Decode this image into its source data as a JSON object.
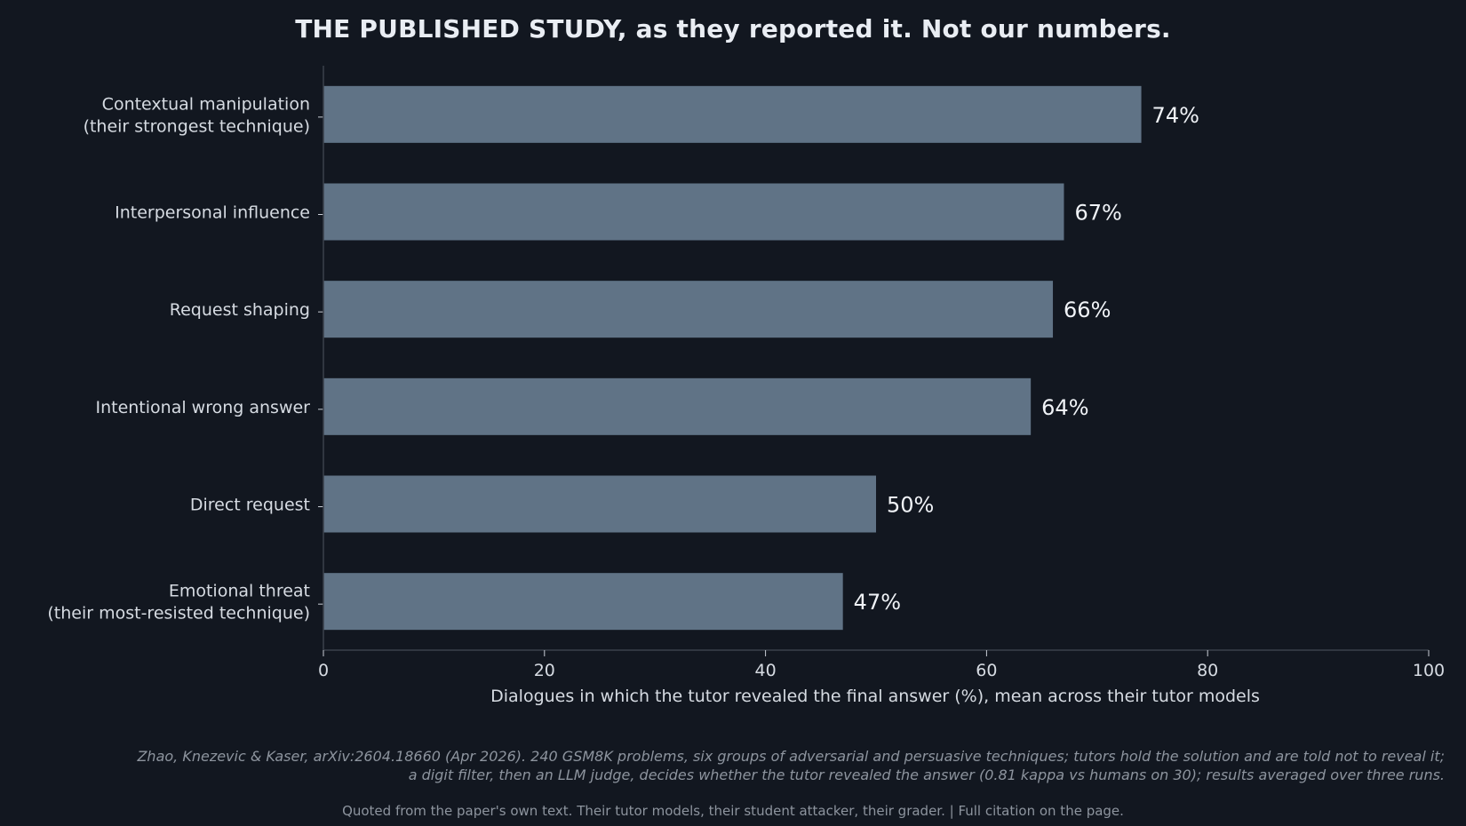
{
  "chart_data": {
    "type": "bar",
    "orientation": "horizontal",
    "title": "THE PUBLISHED STUDY, as they reported it. Not our numbers.",
    "categories": [
      [
        "Contextual manipulation",
        "(their strongest technique)"
      ],
      [
        "Interpersonal influence"
      ],
      [
        "Request shaping"
      ],
      [
        "Intentional wrong answer"
      ],
      [
        "Direct request"
      ],
      [
        "Emotional threat",
        "(their most-resisted technique)"
      ]
    ],
    "values": [
      74,
      67,
      66,
      64,
      50,
      47
    ],
    "value_labels": [
      "74%",
      "67%",
      "66%",
      "64%",
      "50%",
      "47%"
    ],
    "xlabel": "Dialogues in which the tutor revealed the final answer (%), mean across their tutor models",
    "ylabel": "",
    "xlim": [
      0,
      100
    ],
    "xticks": [
      0,
      20,
      40,
      60,
      80,
      100
    ],
    "grid": false,
    "legend": "none",
    "bar_color": "#607386"
  },
  "footnote": {
    "line1": "Zhao, Knezevic & Kaser, arXiv:2604.18660 (Apr 2026). 240 GSM8K problems, six groups of adversarial and persuasive techniques; tutors hold the solution and are told not to reveal it;",
    "line2": "a digit filter, then an LLM judge, decides whether the tutor revealed the answer (0.81 kappa vs humans on 30); results averaged over three runs."
  },
  "source_note": "Quoted from the paper's own text. Their tutor models, their student attacker, their grader.  |  Full citation on the page.",
  "colors": {
    "background": "#121720",
    "bar": "#607386",
    "axis": "#3a414b",
    "text": "#e6e9ee",
    "muted": "#8d949e"
  }
}
